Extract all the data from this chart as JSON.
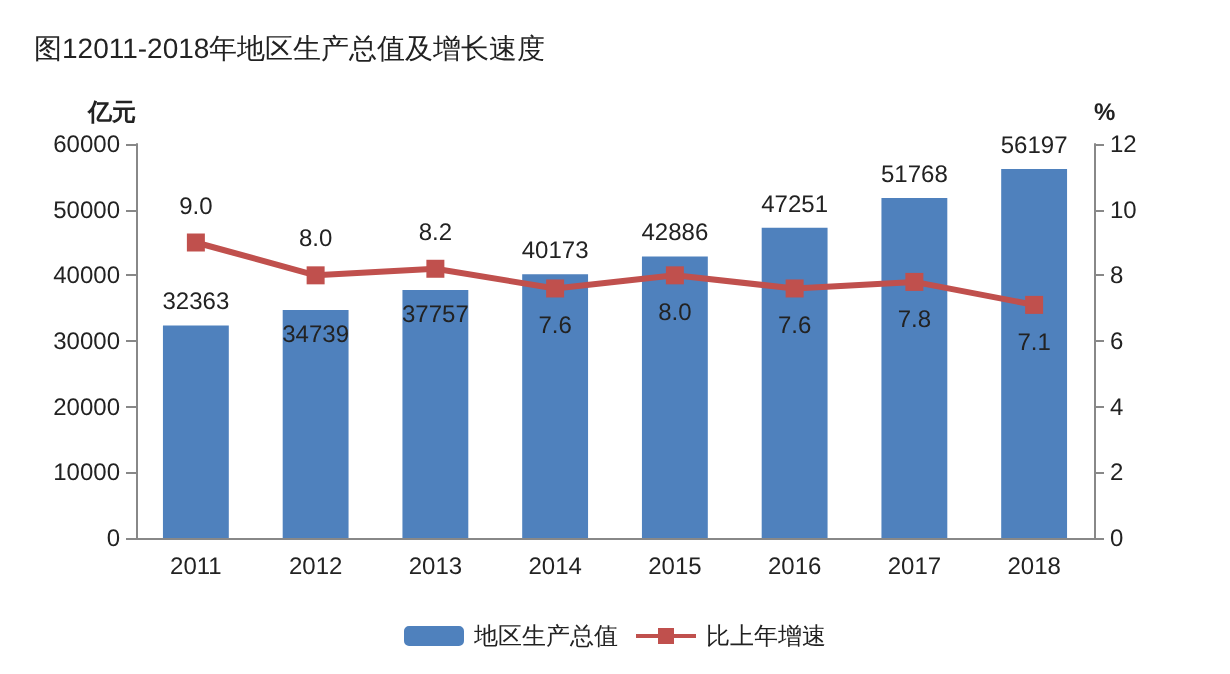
{
  "chart_data": {
    "type": "bar",
    "title": "图12011-2018年地区生产总值及增长速度",
    "ylabel": "亿元",
    "y2label": "%",
    "categories": [
      "2011",
      "2012",
      "2013",
      "2014",
      "2015",
      "2016",
      "2017",
      "2018"
    ],
    "series": [
      {
        "name": "地区生产总值",
        "color": "#4f81bd",
        "values": [
          32363,
          34739,
          37757,
          40173,
          42886,
          47251,
          51768,
          56197
        ]
      },
      {
        "name": "比上年增速",
        "type": "line",
        "axis": "y2",
        "color": "#c0504d",
        "values": [
          9.0,
          8.0,
          8.2,
          7.6,
          8.0,
          7.6,
          7.8,
          7.1
        ],
        "value_labels": [
          "9.0",
          "8.0",
          "8.2",
          "7.6",
          "8.0",
          "7.6",
          "7.8",
          "7.1"
        ]
      }
    ],
    "data_labels": true,
    "ylim": [
      0,
      60000
    ],
    "yticks": [
      0,
      10000,
      20000,
      30000,
      40000,
      50000,
      60000
    ],
    "y2lim": [
      0,
      12
    ],
    "y2ticks": [
      0,
      2,
      4,
      6,
      8,
      10,
      12
    ],
    "legend": "bottom",
    "marker": "square",
    "line_style": "solid",
    "grid": false
  }
}
